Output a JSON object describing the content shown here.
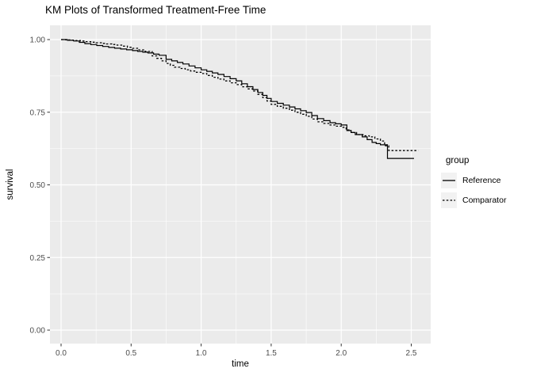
{
  "chart_data": {
    "type": "line",
    "subtype": "kaplan-meier-step",
    "title": "KM Plots of Transformed Treatment-Free Time",
    "xlabel": "time",
    "ylabel": "survival",
    "xlim": [
      0,
      2.6
    ],
    "ylim": [
      0.0,
      1.0
    ],
    "x_ticks": [
      0.0,
      0.5,
      1.0,
      1.5,
      2.0,
      2.5
    ],
    "x_tick_labels": [
      "0.0",
      "0.5",
      "1.0",
      "1.5",
      "2.0",
      "2.5"
    ],
    "y_ticks": [
      0.0,
      0.25,
      0.5,
      0.75,
      1.0
    ],
    "y_tick_labels": [
      "0.00",
      "0.25",
      "0.50",
      "0.75",
      "1.00"
    ],
    "grid": {
      "major": true,
      "minor": true
    },
    "legend_title": "group",
    "legend_position": "right",
    "series": [
      {
        "name": "Reference",
        "linetype": "solid",
        "color": "#000000",
        "points": [
          [
            0.0,
            1.0
          ],
          [
            0.09,
            0.995
          ],
          [
            0.17,
            0.986
          ],
          [
            0.34,
            0.973
          ],
          [
            0.51,
            0.962
          ],
          [
            0.62,
            0.954
          ],
          [
            0.7,
            0.946
          ],
          [
            0.75,
            0.932
          ],
          [
            0.87,
            0.916
          ],
          [
            1.0,
            0.896
          ],
          [
            1.12,
            0.88
          ],
          [
            1.25,
            0.858
          ],
          [
            1.37,
            0.828
          ],
          [
            1.44,
            0.808
          ],
          [
            1.5,
            0.787
          ],
          [
            1.63,
            0.768
          ],
          [
            1.75,
            0.749
          ],
          [
            1.83,
            0.728
          ],
          [
            1.92,
            0.714
          ],
          [
            2.0,
            0.706
          ],
          [
            2.04,
            0.687
          ],
          [
            2.1,
            0.673
          ],
          [
            2.15,
            0.665
          ],
          [
            2.22,
            0.646
          ],
          [
            2.28,
            0.638
          ],
          [
            2.33,
            0.591
          ],
          [
            2.52,
            0.591
          ]
        ]
      },
      {
        "name": "Comparator",
        "linetype": "dashed",
        "color": "#000000",
        "points": [
          [
            0.0,
            1.0
          ],
          [
            0.1,
            0.997
          ],
          [
            0.25,
            0.989
          ],
          [
            0.4,
            0.981
          ],
          [
            0.51,
            0.97
          ],
          [
            0.6,
            0.959
          ],
          [
            0.65,
            0.944
          ],
          [
            0.75,
            0.918
          ],
          [
            0.81,
            0.905
          ],
          [
            1.0,
            0.883
          ],
          [
            1.12,
            0.864
          ],
          [
            1.25,
            0.845
          ],
          [
            1.37,
            0.823
          ],
          [
            1.44,
            0.8
          ],
          [
            1.5,
            0.777
          ],
          [
            1.63,
            0.757
          ],
          [
            1.75,
            0.736
          ],
          [
            1.83,
            0.717
          ],
          [
            1.92,
            0.706
          ],
          [
            2.0,
            0.698
          ],
          [
            2.07,
            0.68
          ],
          [
            2.11,
            0.673
          ],
          [
            2.2,
            0.665
          ],
          [
            2.28,
            0.651
          ],
          [
            2.34,
            0.618
          ],
          [
            2.55,
            0.618
          ]
        ]
      }
    ]
  },
  "colors": {
    "background": "#FFFFFF",
    "panel_bg": "#EBEBEB",
    "gridline": "#FFFFFF",
    "tick_mark": "#333333",
    "tick_text": "#4D4D4D",
    "line": "#000000",
    "legend_key_bg": "#F2F2F2"
  }
}
